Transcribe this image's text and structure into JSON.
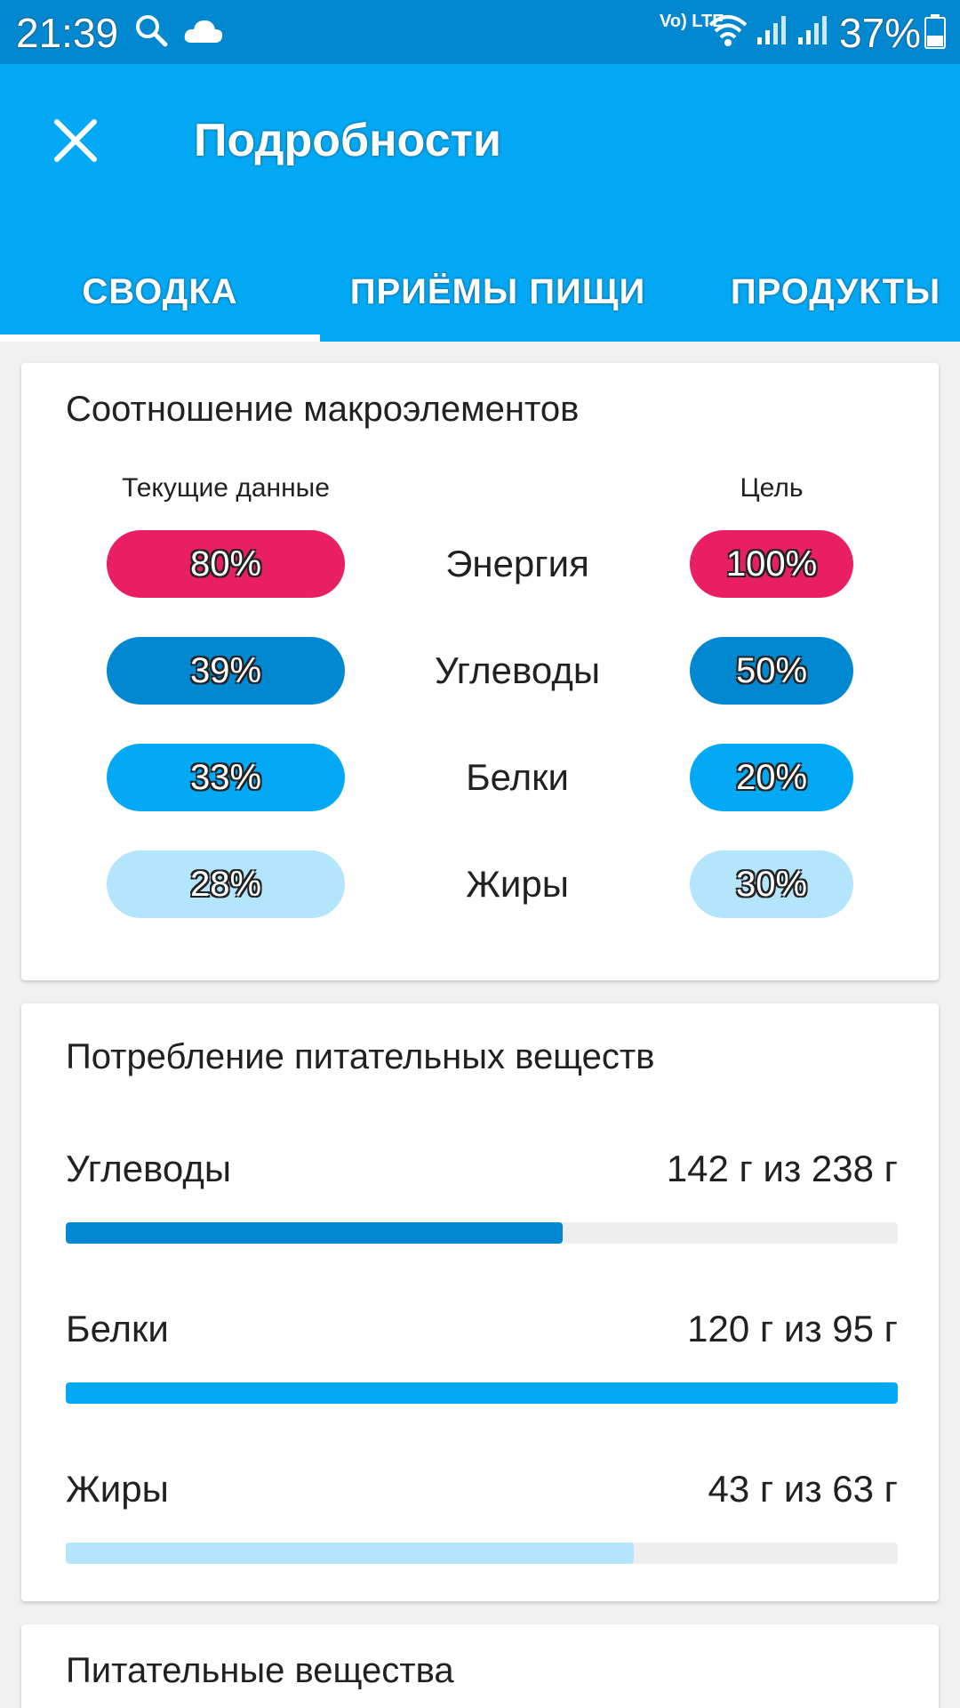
{
  "status_bar": {
    "time": "21:39",
    "network": "Vo) LTE",
    "battery": "37%",
    "icons": [
      "search-icon",
      "cloud-icon",
      "volte-icon",
      "wifi-icon",
      "signal-icon",
      "signal-icon",
      "battery-icon"
    ]
  },
  "header": {
    "title": "Подробности",
    "close_icon": "close-icon"
  },
  "tabs": [
    {
      "label": "СВОДКА",
      "active": true
    },
    {
      "label": "ПРИЁМЫ ПИЩИ",
      "active": false
    },
    {
      "label": "ПРОДУКТЫ",
      "active": false
    }
  ],
  "macro_ratio": {
    "title": "Соотношение макроэлементов",
    "current_header": "Текущие данные",
    "goal_header": "Цель",
    "rows": [
      {
        "name": "Энергия",
        "current": "80%",
        "goal": "100%",
        "color": "#e91e63"
      },
      {
        "name": "Углеводы",
        "current": "39%",
        "goal": "50%",
        "color": "#0288d1"
      },
      {
        "name": "Белки",
        "current": "33%",
        "goal": "20%",
        "color": "#03a9f4"
      },
      {
        "name": "Жиры",
        "current": "28%",
        "goal": "30%",
        "color": "#b3e5fc"
      }
    ]
  },
  "nutrient_intake": {
    "title": "Потребление питательных веществ",
    "items": [
      {
        "name": "Углеводы",
        "value": "142 г из 238 г",
        "progress": 0.597,
        "color": "#0288d1"
      },
      {
        "name": "Белки",
        "value": "120 г из 95 г",
        "progress": 1.0,
        "color": "#03a9f4"
      },
      {
        "name": "Жиры",
        "value": "43 г из 63 г",
        "progress": 0.683,
        "color": "#b3e5fc"
      }
    ]
  },
  "nutrients": {
    "title": "Питательные вещества"
  },
  "colors": {
    "status_bar": "#0288d1",
    "app_bar": "#03a9f4",
    "energy": "#e91e63",
    "carbs": "#0288d1",
    "protein": "#03a9f4",
    "fat": "#b3e5fc"
  }
}
